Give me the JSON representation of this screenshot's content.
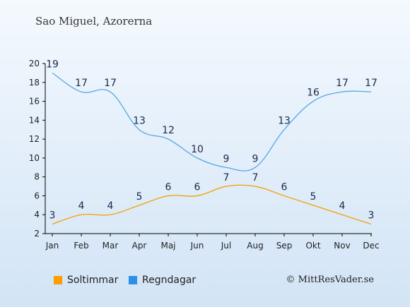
{
  "chart_data": {
    "type": "line",
    "title": "Sao Miguel, Azorerna",
    "categories": [
      "Jan",
      "Feb",
      "Mar",
      "Apr",
      "Maj",
      "Jun",
      "Jul",
      "Aug",
      "Sep",
      "Okt",
      "Nov",
      "Dec"
    ],
    "series": [
      {
        "name": "Soltimmar",
        "values": [
          3,
          4,
          4,
          5,
          6,
          6,
          7,
          7,
          6,
          5,
          4,
          3
        ],
        "color": "#f5a000"
      },
      {
        "name": "Regndagar",
        "values": [
          19,
          17,
          17,
          13,
          12,
          10,
          9,
          9,
          13,
          16,
          17,
          17
        ],
        "color": "#55a8e6"
      }
    ],
    "ylim": [
      2,
      20
    ],
    "yticks": [
      2,
      4,
      6,
      8,
      10,
      12,
      14,
      16,
      18,
      20
    ],
    "grid": false,
    "legend_position": "bottom-left"
  },
  "copyright": "© MittResVader.se",
  "colors": {
    "sun": "#f5a000",
    "rain": "#55a8e6",
    "rain_swatch": "#2e8fe6",
    "sun_swatch": "#ff9c00"
  }
}
